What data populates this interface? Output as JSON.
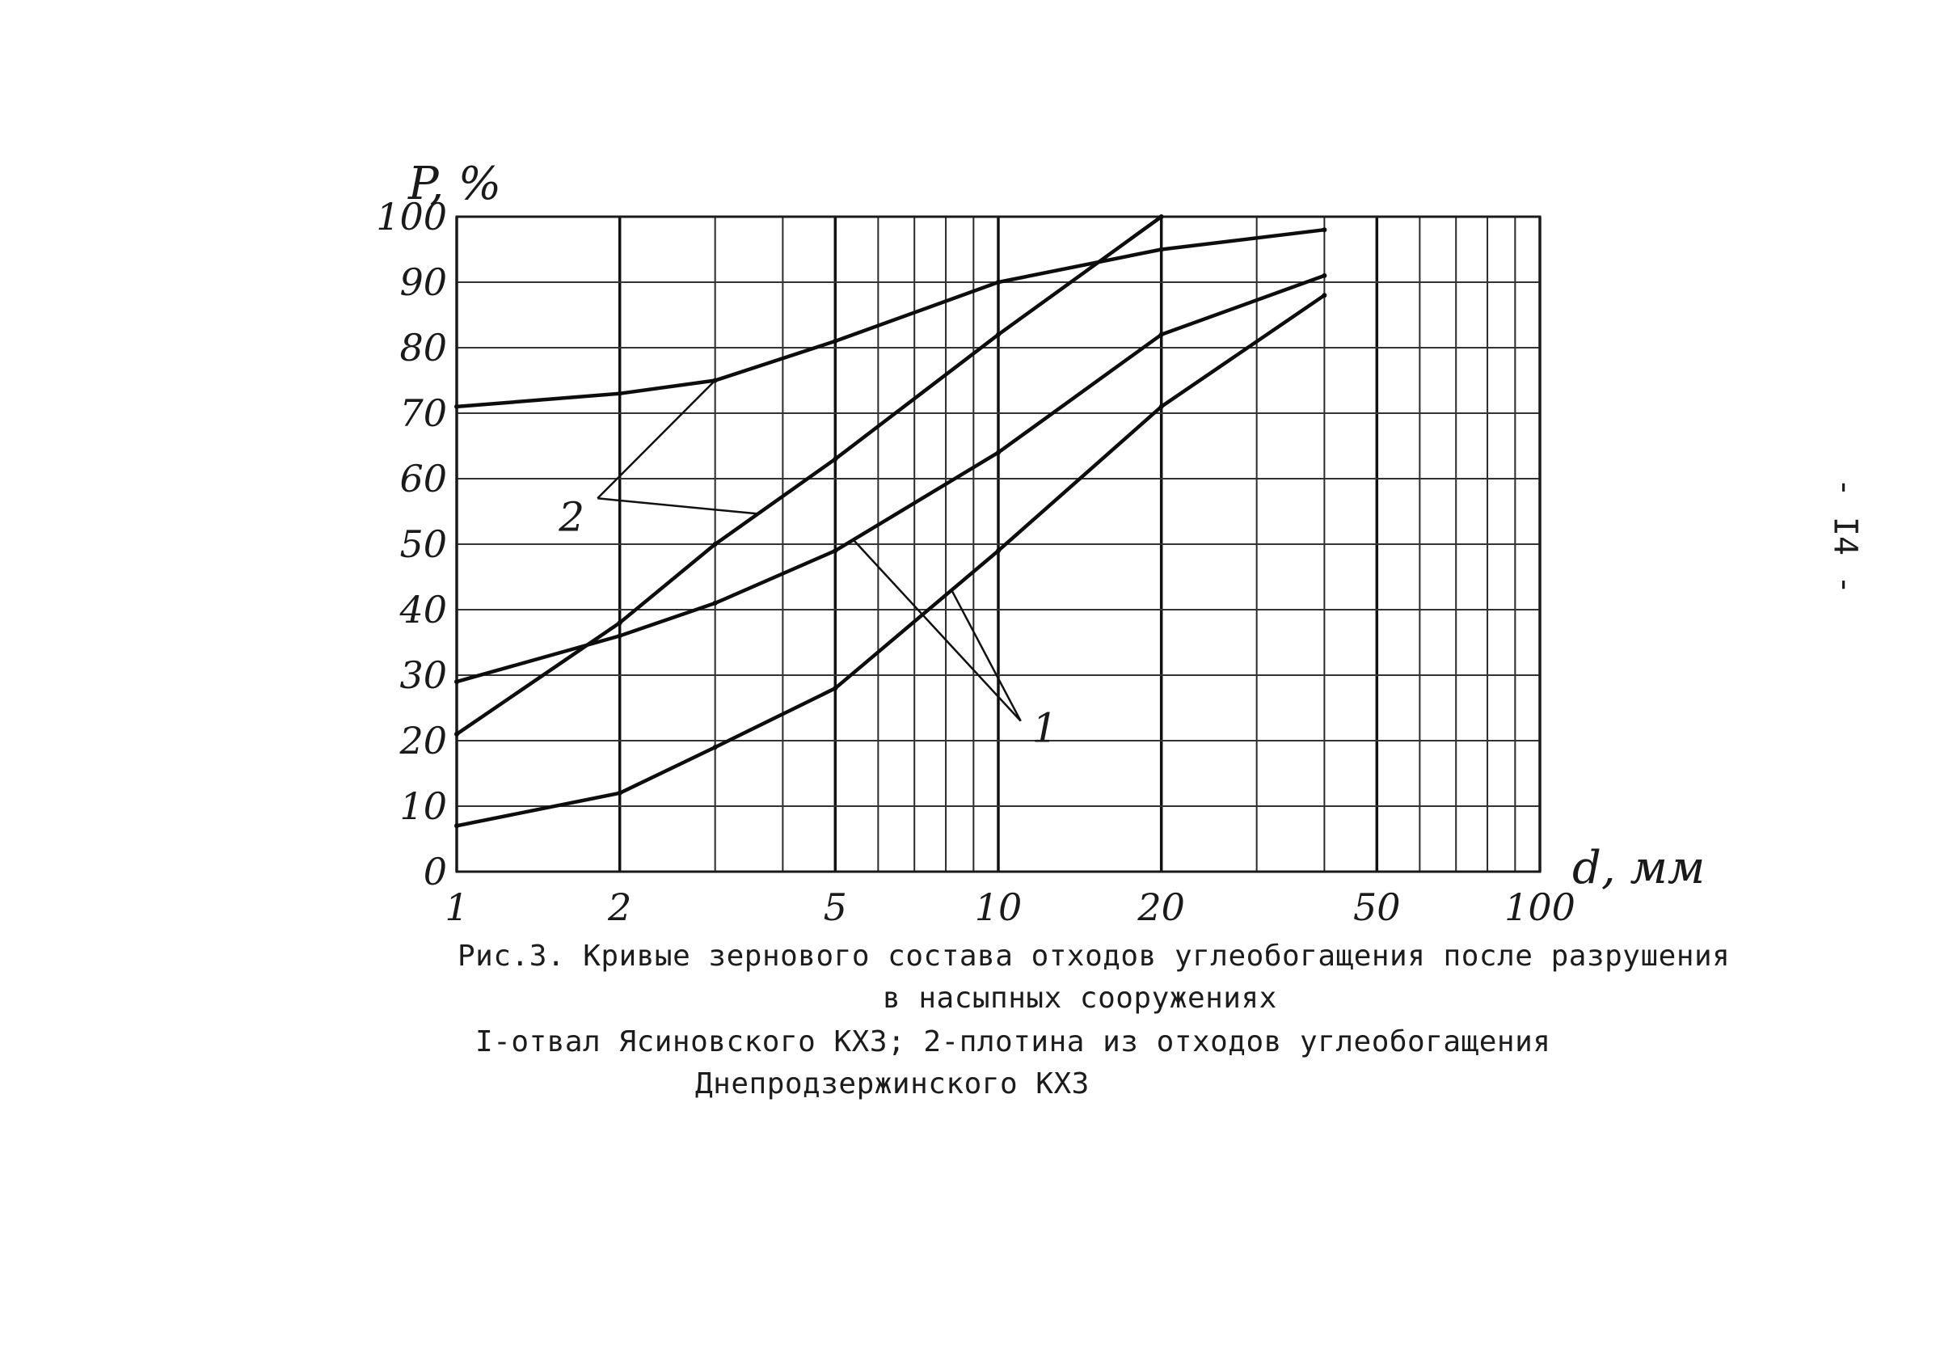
{
  "chart_data": {
    "type": "line",
    "title": "",
    "xlabel": "d, мм",
    "ylabel": "P, %",
    "x_scale": "log",
    "xlim": [
      1,
      100
    ],
    "ylim": [
      0,
      100
    ],
    "grid": true,
    "x_tick_labels": [
      "1",
      "2",
      "5",
      "10",
      "20",
      "50",
      "100"
    ],
    "x_tick_values": [
      1,
      2,
      5,
      10,
      20,
      50,
      100
    ],
    "y_tick_labels": [
      "0",
      "10",
      "20",
      "30",
      "40",
      "50",
      "60",
      "70",
      "80",
      "90",
      "100"
    ],
    "y_tick_values": [
      0,
      10,
      20,
      30,
      40,
      50,
      60,
      70,
      80,
      90,
      100
    ],
    "series": [
      {
        "name": "1",
        "x": [
          1,
          2,
          3,
          5,
          10,
          20,
          40
        ],
        "y": [
          7,
          12,
          19,
          28,
          49,
          71,
          88
        ]
      },
      {
        "name": "1",
        "x": [
          1,
          2,
          3,
          5,
          10,
          20,
          40
        ],
        "y": [
          29,
          36,
          41,
          49,
          64,
          82,
          91
        ]
      },
      {
        "name": "2",
        "x": [
          1,
          2,
          3,
          5,
          10,
          20
        ],
        "y": [
          21,
          38,
          50,
          63,
          82,
          100
        ]
      },
      {
        "name": "2",
        "x": [
          1,
          2,
          3,
          5,
          10,
          20,
          40
        ],
        "y": [
          71,
          73,
          75,
          81,
          90,
          95,
          98
        ]
      }
    ],
    "curve_labels": [
      {
        "text": "1",
        "target_series": [
          0,
          1
        ]
      },
      {
        "text": "2",
        "target_series": [
          2,
          3
        ]
      }
    ]
  },
  "page_number": "- I4 -",
  "caption": {
    "line1": "Рис.3. Кривые зернового состава отходов углеобогащения после разрушения",
    "line2": "в насыпных сооружениях",
    "line3": "I-отвал Ясиновского КХЗ; 2-плотина из отходов углеобогащения",
    "line4": "Днепродзержинского КХЗ"
  }
}
